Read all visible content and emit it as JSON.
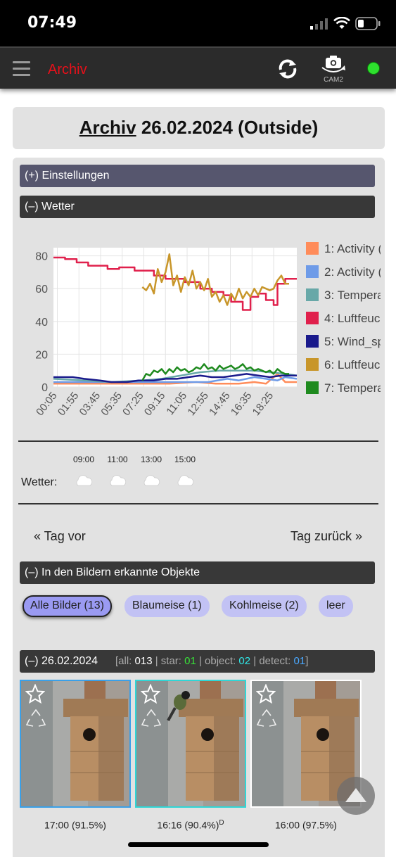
{
  "status_bar": {
    "time": "07:49"
  },
  "nav": {
    "title": "Archiv",
    "cam_label": "CAM2",
    "status_color": "#2ee02e"
  },
  "page_title": {
    "link": "Archiv",
    "rest": " 26.02.2024 (Outside)"
  },
  "sections": {
    "settings": "(+) Einstellungen",
    "weather": "(–) Wetter",
    "objects": "(–) In den Bildern erkannte Objekte"
  },
  "chart_data": {
    "type": "line",
    "x": [
      "00:05",
      "01:55",
      "03:45",
      "05:35",
      "07:25",
      "09:15",
      "11:05",
      "12:55",
      "14:45",
      "16:35",
      "18:25"
    ],
    "ylim": [
      0,
      85
    ],
    "yticks": [
      0,
      20,
      40,
      60,
      80
    ],
    "legend_position": "right",
    "series": [
      {
        "name": "1: Activity (",
        "color": "#ff8c5a",
        "points": [
          [
            0,
            2
          ],
          [
            15,
            2
          ],
          [
            23,
            2
          ],
          [
            30,
            2
          ],
          [
            37,
            3
          ],
          [
            42,
            2
          ],
          [
            48,
            2
          ],
          [
            52,
            3
          ],
          [
            55,
            2
          ],
          [
            58,
            8
          ],
          [
            60,
            3
          ],
          [
            63,
            3
          ]
        ]
      },
      {
        "name": "2: Activity (",
        "color": "#6e9be8",
        "points": [
          [
            0,
            3
          ],
          [
            15,
            3
          ],
          [
            23,
            3
          ],
          [
            30,
            3
          ],
          [
            40,
            3
          ],
          [
            45,
            5
          ],
          [
            48,
            4
          ],
          [
            52,
            6
          ],
          [
            55,
            5
          ],
          [
            58,
            4
          ],
          [
            60,
            6
          ],
          [
            63,
            5
          ]
        ]
      },
      {
        "name": "3: Tempera",
        "color": "#68a8a8",
        "points": [
          [
            0,
            5
          ],
          [
            8,
            4
          ],
          [
            15,
            3
          ],
          [
            23,
            4
          ],
          [
            28,
            5
          ],
          [
            33,
            7
          ],
          [
            38,
            9
          ],
          [
            43,
            10
          ],
          [
            48,
            10
          ],
          [
            52,
            10
          ],
          [
            56,
            9
          ],
          [
            60,
            8
          ],
          [
            63,
            7
          ]
        ]
      },
      {
        "name": "4: Luftfeuc",
        "color": "#e0204c",
        "points": [
          [
            0,
            79
          ],
          [
            3,
            79
          ],
          [
            3,
            78
          ],
          [
            6,
            78
          ],
          [
            6,
            76
          ],
          [
            9,
            76
          ],
          [
            9,
            74
          ],
          [
            14,
            74
          ],
          [
            14,
            72
          ],
          [
            17,
            72
          ],
          [
            17,
            73
          ],
          [
            21,
            73
          ],
          [
            21,
            71
          ],
          [
            26,
            71
          ],
          [
            26,
            68
          ],
          [
            29,
            68
          ],
          [
            29,
            66
          ],
          [
            34,
            66
          ],
          [
            34,
            64
          ],
          [
            38,
            64
          ],
          [
            38,
            60
          ],
          [
            41,
            60
          ],
          [
            41,
            58
          ],
          [
            44,
            58
          ],
          [
            44,
            56
          ],
          [
            46,
            56
          ],
          [
            46,
            52
          ],
          [
            49,
            52
          ],
          [
            49,
            47
          ],
          [
            51,
            47
          ],
          [
            51,
            55
          ],
          [
            53,
            55
          ],
          [
            53,
            57
          ],
          [
            55,
            57
          ],
          [
            55,
            53
          ],
          [
            57,
            53
          ],
          [
            57,
            50
          ],
          [
            58,
            50
          ],
          [
            58,
            63
          ],
          [
            60,
            63
          ],
          [
            60,
            66
          ],
          [
            63,
            66
          ]
        ]
      },
      {
        "name": "5: Wind_sp",
        "color": "#1a1a8c",
        "points": [
          [
            0,
            6
          ],
          [
            5,
            6
          ],
          [
            8,
            5
          ],
          [
            12,
            4
          ],
          [
            15,
            3
          ],
          [
            19,
            3
          ],
          [
            22,
            4
          ],
          [
            26,
            4
          ],
          [
            29,
            5
          ],
          [
            32,
            5
          ],
          [
            35,
            6
          ],
          [
            38,
            7
          ],
          [
            41,
            6
          ],
          [
            44,
            6
          ],
          [
            47,
            7
          ],
          [
            50,
            8
          ],
          [
            53,
            7
          ],
          [
            56,
            6
          ],
          [
            59,
            7
          ],
          [
            61,
            7
          ],
          [
            63,
            7
          ]
        ]
      },
      {
        "name": "6: Luftfeuc",
        "color": "#c8962a",
        "points": [
          [
            23,
            61
          ],
          [
            24,
            59
          ],
          [
            25,
            63
          ],
          [
            26,
            57
          ],
          [
            27,
            72
          ],
          [
            28,
            64
          ],
          [
            29,
            70
          ],
          [
            30,
            81
          ],
          [
            31,
            62
          ],
          [
            32,
            68
          ],
          [
            33,
            58
          ],
          [
            34,
            67
          ],
          [
            35,
            62
          ],
          [
            36,
            71
          ],
          [
            37,
            60
          ],
          [
            38,
            64
          ],
          [
            39,
            59
          ],
          [
            40,
            66
          ],
          [
            41,
            55
          ],
          [
            42,
            58
          ],
          [
            43,
            52
          ],
          [
            44,
            56
          ],
          [
            45,
            50
          ],
          [
            46,
            57
          ],
          [
            47,
            53
          ],
          [
            48,
            60
          ],
          [
            49,
            54
          ],
          [
            50,
            58
          ],
          [
            51,
            55
          ],
          [
            52,
            60
          ],
          [
            53,
            56
          ],
          [
            54,
            61
          ],
          [
            55,
            60
          ],
          [
            56,
            59
          ],
          [
            57,
            60
          ],
          [
            58,
            65
          ],
          [
            59,
            68
          ],
          [
            60,
            63
          ],
          [
            61,
            63
          ]
        ]
      },
      {
        "name": "7: Tempera",
        "color": "#1e8a1e",
        "points": [
          [
            23,
            4
          ],
          [
            24,
            8
          ],
          [
            25,
            7
          ],
          [
            26,
            10
          ],
          [
            27,
            9
          ],
          [
            28,
            11
          ],
          [
            29,
            8
          ],
          [
            30,
            11
          ],
          [
            31,
            9
          ],
          [
            32,
            12
          ],
          [
            33,
            10
          ],
          [
            34,
            11
          ],
          [
            35,
            9
          ],
          [
            36,
            10
          ],
          [
            37,
            12
          ],
          [
            38,
            11
          ],
          [
            39,
            14
          ],
          [
            40,
            11
          ],
          [
            41,
            12
          ],
          [
            42,
            10
          ],
          [
            43,
            13
          ],
          [
            44,
            11
          ],
          [
            45,
            12
          ],
          [
            46,
            13
          ],
          [
            47,
            11
          ],
          [
            48,
            12
          ],
          [
            49,
            14
          ],
          [
            50,
            11
          ],
          [
            51,
            12
          ],
          [
            52,
            10
          ],
          [
            53,
            11
          ],
          [
            54,
            10
          ],
          [
            55,
            9
          ],
          [
            56,
            10
          ],
          [
            57,
            8
          ],
          [
            58,
            11
          ],
          [
            59,
            9
          ],
          [
            60,
            8
          ],
          [
            61,
            8
          ]
        ]
      }
    ]
  },
  "weather_times": [
    "09:00",
    "11:00",
    "13:00",
    "15:00"
  ],
  "weather_label": "Wetter:",
  "pager": {
    "prev": "« Tag vor",
    "next": "Tag zurück »"
  },
  "chips": [
    "Alle Bilder (13)",
    "Blaumeise (1)",
    "Kohlmeise (2)",
    "leer"
  ],
  "date_bar": {
    "date": "(–) 26.02.2024",
    "s1": "[all: ",
    "all": "013",
    "s2": " | star: ",
    "star": "01",
    "s3": " | object: ",
    "object": "02",
    "s4": " | detect: ",
    "detect": "01",
    "s5": "]"
  },
  "thumbs": [
    {
      "caption": "17:00 (91.5%)",
      "sup": ""
    },
    {
      "caption": "16:16 (90.4%)",
      "sup": "D"
    },
    {
      "caption": "16:00 (97.5%)",
      "sup": ""
    }
  ]
}
